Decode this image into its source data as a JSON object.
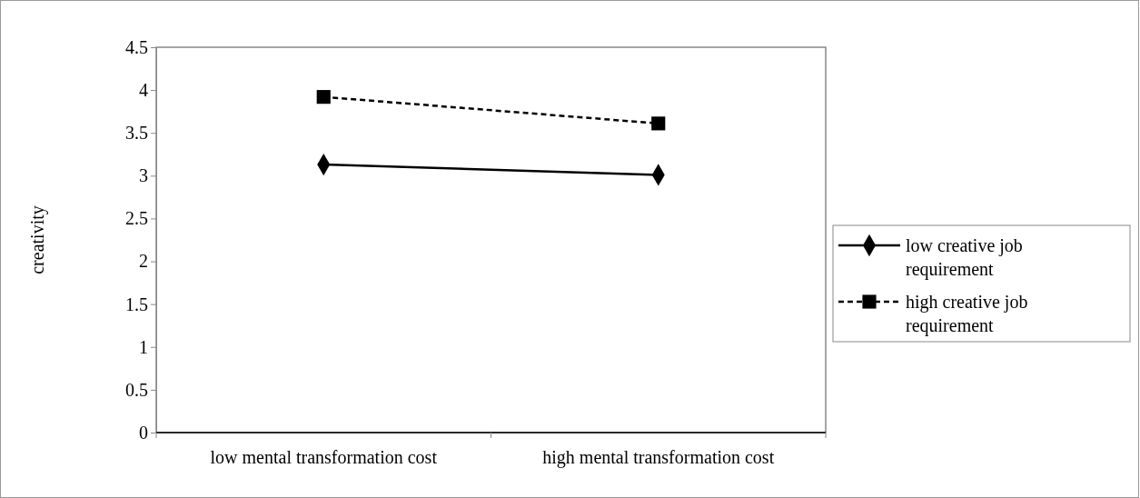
{
  "chart_data": {
    "type": "line",
    "ylabel": "creativity",
    "categories": [
      "low mental transformation cost",
      "high mental transformation cost"
    ],
    "series": [
      {
        "name": "low creative job requirement",
        "color": "#000000",
        "values": [
          3.13,
          3.01
        ],
        "marker": "diamond",
        "line_style": "solid"
      },
      {
        "name": "high creative job requirement",
        "color": "#000000",
        "values": [
          3.92,
          3.61
        ],
        "marker": "square",
        "line_style": "dashed"
      }
    ],
    "ylim": [
      0,
      4.5
    ],
    "yticks": [
      0,
      0.5,
      1,
      1.5,
      2,
      2.5,
      3,
      3.5,
      4,
      4.5
    ],
    "grid": false,
    "legend": "right"
  }
}
